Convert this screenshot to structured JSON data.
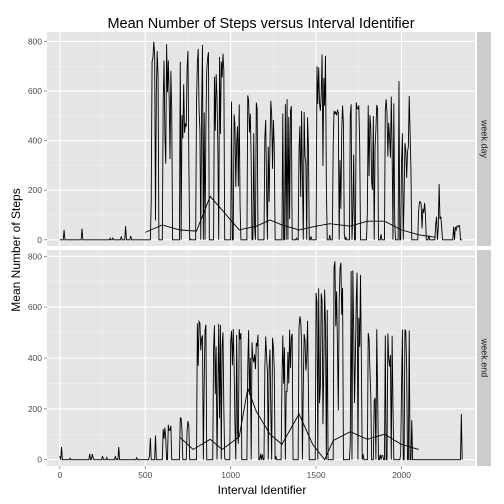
{
  "chart_data": {
    "type": "line",
    "title": "Mean Number of Steps versus Interval Identifier",
    "xlabel": "Interval Identifier",
    "ylabel": "Mean Number of Steps",
    "xlim": [
      -75,
      2430
    ],
    "x_ticks": [
      0,
      500,
      1000,
      1500,
      2000
    ],
    "y_ticks": [
      0,
      200,
      400,
      600,
      800
    ],
    "grid": true,
    "facet_strip_position": "right",
    "colors": {
      "panel_bg": "#e5e5e5",
      "grid_major": "#ffffff",
      "grid_minor": "#f2f2f2",
      "strip_bg": "#cccccc",
      "line": "#000000"
    },
    "panels": [
      {
        "label": "week.day",
        "ylim": [
          -25,
          838
        ],
        "bursts": [
          {
            "x": [
              535,
              575
            ],
            "peak": 800
          },
          {
            "x": [
              605,
              655
            ],
            "peak": 800
          },
          {
            "x": [
              700,
              755
            ],
            "peak": 800
          },
          {
            "x": [
              800,
              870
            ],
            "peak": 795
          },
          {
            "x": [
              900,
              960
            ],
            "peak": 770
          },
          {
            "x": [
              1000,
              1055
            ],
            "peak": 565
          },
          {
            "x": [
              1100,
              1155
            ],
            "peak": 590
          },
          {
            "x": [
              1200,
              1255
            ],
            "peak": 565
          },
          {
            "x": [
              1300,
              1355
            ],
            "peak": 590
          },
          {
            "x": [
              1400,
              1455
            ],
            "peak": 535
          },
          {
            "x": [
              1500,
              1560
            ],
            "peak": 760
          },
          {
            "x": [
              1600,
              1660
            ],
            "peak": 590
          },
          {
            "x": [
              1700,
              1755
            ],
            "peak": 560
          },
          {
            "x": [
              1800,
              1860
            ],
            "peak": 555
          },
          {
            "x": [
              1900,
              1960
            ],
            "peak": 595
          },
          {
            "x": [
              2000,
              2055
            ],
            "peak": 435
          },
          {
            "x": [
              2100,
              2140
            ],
            "peak": 160
          },
          {
            "x": [
              2200,
              2235
            ],
            "peak": 95
          },
          {
            "x": [
              2300,
              2340
            ],
            "peak": 60
          }
        ],
        "spikes": [
          {
            "x": 2045,
            "value": 580
          },
          {
            "x": 1985,
            "value": 640
          },
          {
            "x": 2220,
            "value": 225
          },
          {
            "x": 535,
            "value": 160
          },
          {
            "x": 25,
            "value": 40
          },
          {
            "x": 130,
            "value": 45
          },
          {
            "x": 385,
            "value": 55
          }
        ],
        "mean_line": [
          {
            "x": 500,
            "value": 30
          },
          {
            "x": 600,
            "value": 60
          },
          {
            "x": 700,
            "value": 40
          },
          {
            "x": 800,
            "value": 35
          },
          {
            "x": 880,
            "value": 175
          },
          {
            "x": 950,
            "value": 120
          },
          {
            "x": 1050,
            "value": 40
          },
          {
            "x": 1150,
            "value": 55
          },
          {
            "x": 1230,
            "value": 80
          },
          {
            "x": 1300,
            "value": 60
          },
          {
            "x": 1400,
            "value": 40
          },
          {
            "x": 1500,
            "value": 55
          },
          {
            "x": 1580,
            "value": 65
          },
          {
            "x": 1700,
            "value": 55
          },
          {
            "x": 1800,
            "value": 75
          },
          {
            "x": 1900,
            "value": 75
          },
          {
            "x": 2000,
            "value": 40
          },
          {
            "x": 2100,
            "value": 20
          },
          {
            "x": 2200,
            "value": 10
          }
        ]
      },
      {
        "label": "week.end",
        "ylim": [
          -25,
          825
        ],
        "bursts": [
          {
            "x": [
              600,
              655
            ],
            "peak": 140
          },
          {
            "x": [
              700,
              755
            ],
            "peak": 170
          },
          {
            "x": [
              800,
              855
            ],
            "peak": 545
          },
          {
            "x": [
              900,
              960
            ],
            "peak": 545
          },
          {
            "x": [
              1000,
              1060
            ],
            "peak": 535
          },
          {
            "x": [
              1100,
              1160
            ],
            "peak": 515
          },
          {
            "x": [
              1200,
              1255
            ],
            "peak": 520
          },
          {
            "x": [
              1300,
              1360
            ],
            "peak": 525
          },
          {
            "x": [
              1400,
              1455
            ],
            "peak": 600
          },
          {
            "x": [
              1500,
              1570
            ],
            "peak": 685
          },
          {
            "x": [
              1600,
              1660
            ],
            "peak": 780
          },
          {
            "x": [
              1700,
              1765
            ],
            "peak": 755
          },
          {
            "x": [
              1800,
              1860
            ],
            "peak": 535
          },
          {
            "x": [
              1900,
              1950
            ],
            "peak": 530
          },
          {
            "x": [
              2000,
              2050
            ],
            "peak": 530
          }
        ],
        "spikes": [
          {
            "x": 1610,
            "value": 780
          },
          {
            "x": 1645,
            "value": 775
          },
          {
            "x": 2350,
            "value": 180
          },
          {
            "x": 2060,
            "value": 155
          },
          {
            "x": 10,
            "value": 50
          },
          {
            "x": 345,
            "value": 50
          },
          {
            "x": 530,
            "value": 85
          },
          {
            "x": 560,
            "value": 95
          }
        ],
        "mean_line": [
          {
            "x": 700,
            "value": 90
          },
          {
            "x": 780,
            "value": 40
          },
          {
            "x": 880,
            "value": 80
          },
          {
            "x": 950,
            "value": 40
          },
          {
            "x": 1050,
            "value": 90
          },
          {
            "x": 1100,
            "value": 280
          },
          {
            "x": 1150,
            "value": 190
          },
          {
            "x": 1230,
            "value": 100
          },
          {
            "x": 1300,
            "value": 60
          },
          {
            "x": 1400,
            "value": 180
          },
          {
            "x": 1480,
            "value": 60
          },
          {
            "x": 1550,
            "value": 0
          },
          {
            "x": 1600,
            "value": 75
          },
          {
            "x": 1700,
            "value": 110
          },
          {
            "x": 1800,
            "value": 80
          },
          {
            "x": 1900,
            "value": 100
          },
          {
            "x": 2000,
            "value": 60
          },
          {
            "x": 2100,
            "value": 40
          }
        ]
      }
    ]
  }
}
